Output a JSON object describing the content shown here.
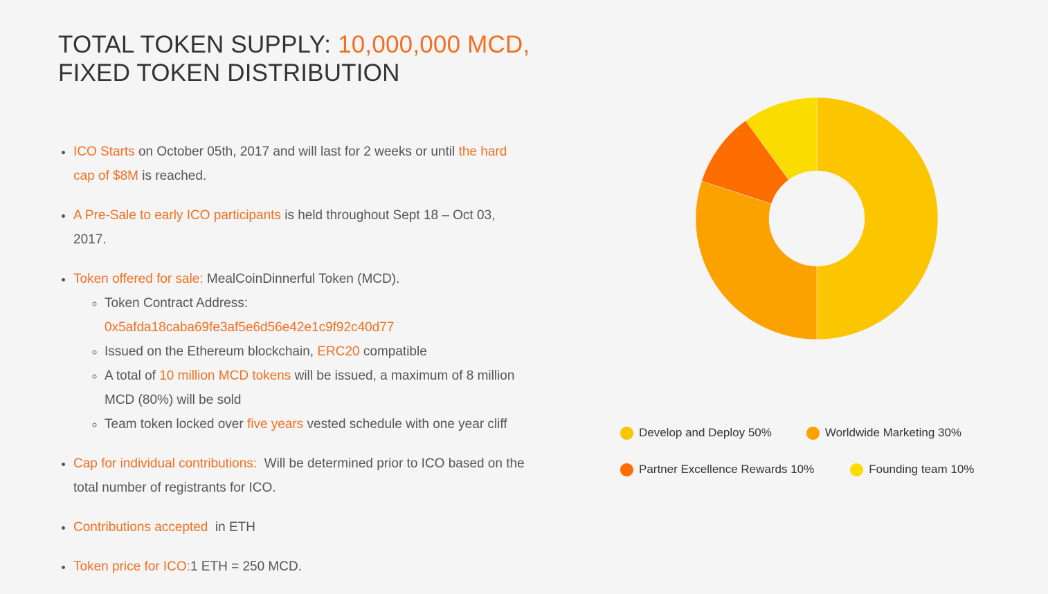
{
  "heading": {
    "line1_prefix": "TOTAL TOKEN SUPPLY: ",
    "line1_highlight": "10,000,000 MCD,",
    "line2": "FIXED TOKEN DISTRIBUTION"
  },
  "info": {
    "ico_start": {
      "hl1": "ICO Starts",
      "text1": " on October 05th, 2017 and will last for 2 weeks or until ",
      "hl2": "the hard cap of $8M",
      "text2": " is reached."
    },
    "presale": {
      "hl": "A Pre-Sale to early ICO participants",
      "text": " is held throughout Sept 18 – Oct 03, 2017."
    },
    "token_offered": {
      "hl": "Token offered for sale:",
      "text": " MealCoinDinnerful Token (MCD).",
      "contract_label": "Token Contract Address: ",
      "contract_address": "0x5afda18caba69fe3af5e6d56e42e1c9f92c40d77",
      "issued_text1": "Issued on the Ethereum blockchain, ",
      "issued_hl": "ERC20",
      "issued_text2": " compatible",
      "total_text1": "A total of ",
      "total_hl": "10 million MCD tokens",
      "total_text2": " will be issued, a maximum of 8 million MCD (80%) will be sold",
      "team_text1": "Team token locked over ",
      "team_hl": "five years",
      "team_text2": " vested schedule with one year cliff"
    },
    "cap": {
      "hl": "Cap for individual contributions:",
      "text": "  Will be determined prior to ICO based on the total number of registrants for ICO."
    },
    "contributions": {
      "hl": "Contributions accepted",
      "text": "  in ETH"
    },
    "price": {
      "hl": "Token price for ICO:",
      "text": "1 ETH = 250 MCD."
    }
  },
  "chart_data": {
    "type": "pie",
    "donut": true,
    "title": "",
    "categories": [
      "Develop and Deploy",
      "Worldwide Marketing",
      "Partner Excellence Rewards",
      "Founding team"
    ],
    "values": [
      50,
      30,
      10,
      10
    ],
    "colors": [
      "#fbc600",
      "#fba100",
      "#fd6d00",
      "#fbdc00"
    ],
    "legend_labels": [
      "Develop and Deploy 50%",
      "Worldwide Marketing 30%",
      "Partner Excellence Rewards 10%",
      "Founding team 10%"
    ],
    "legend_position": "bottom"
  }
}
